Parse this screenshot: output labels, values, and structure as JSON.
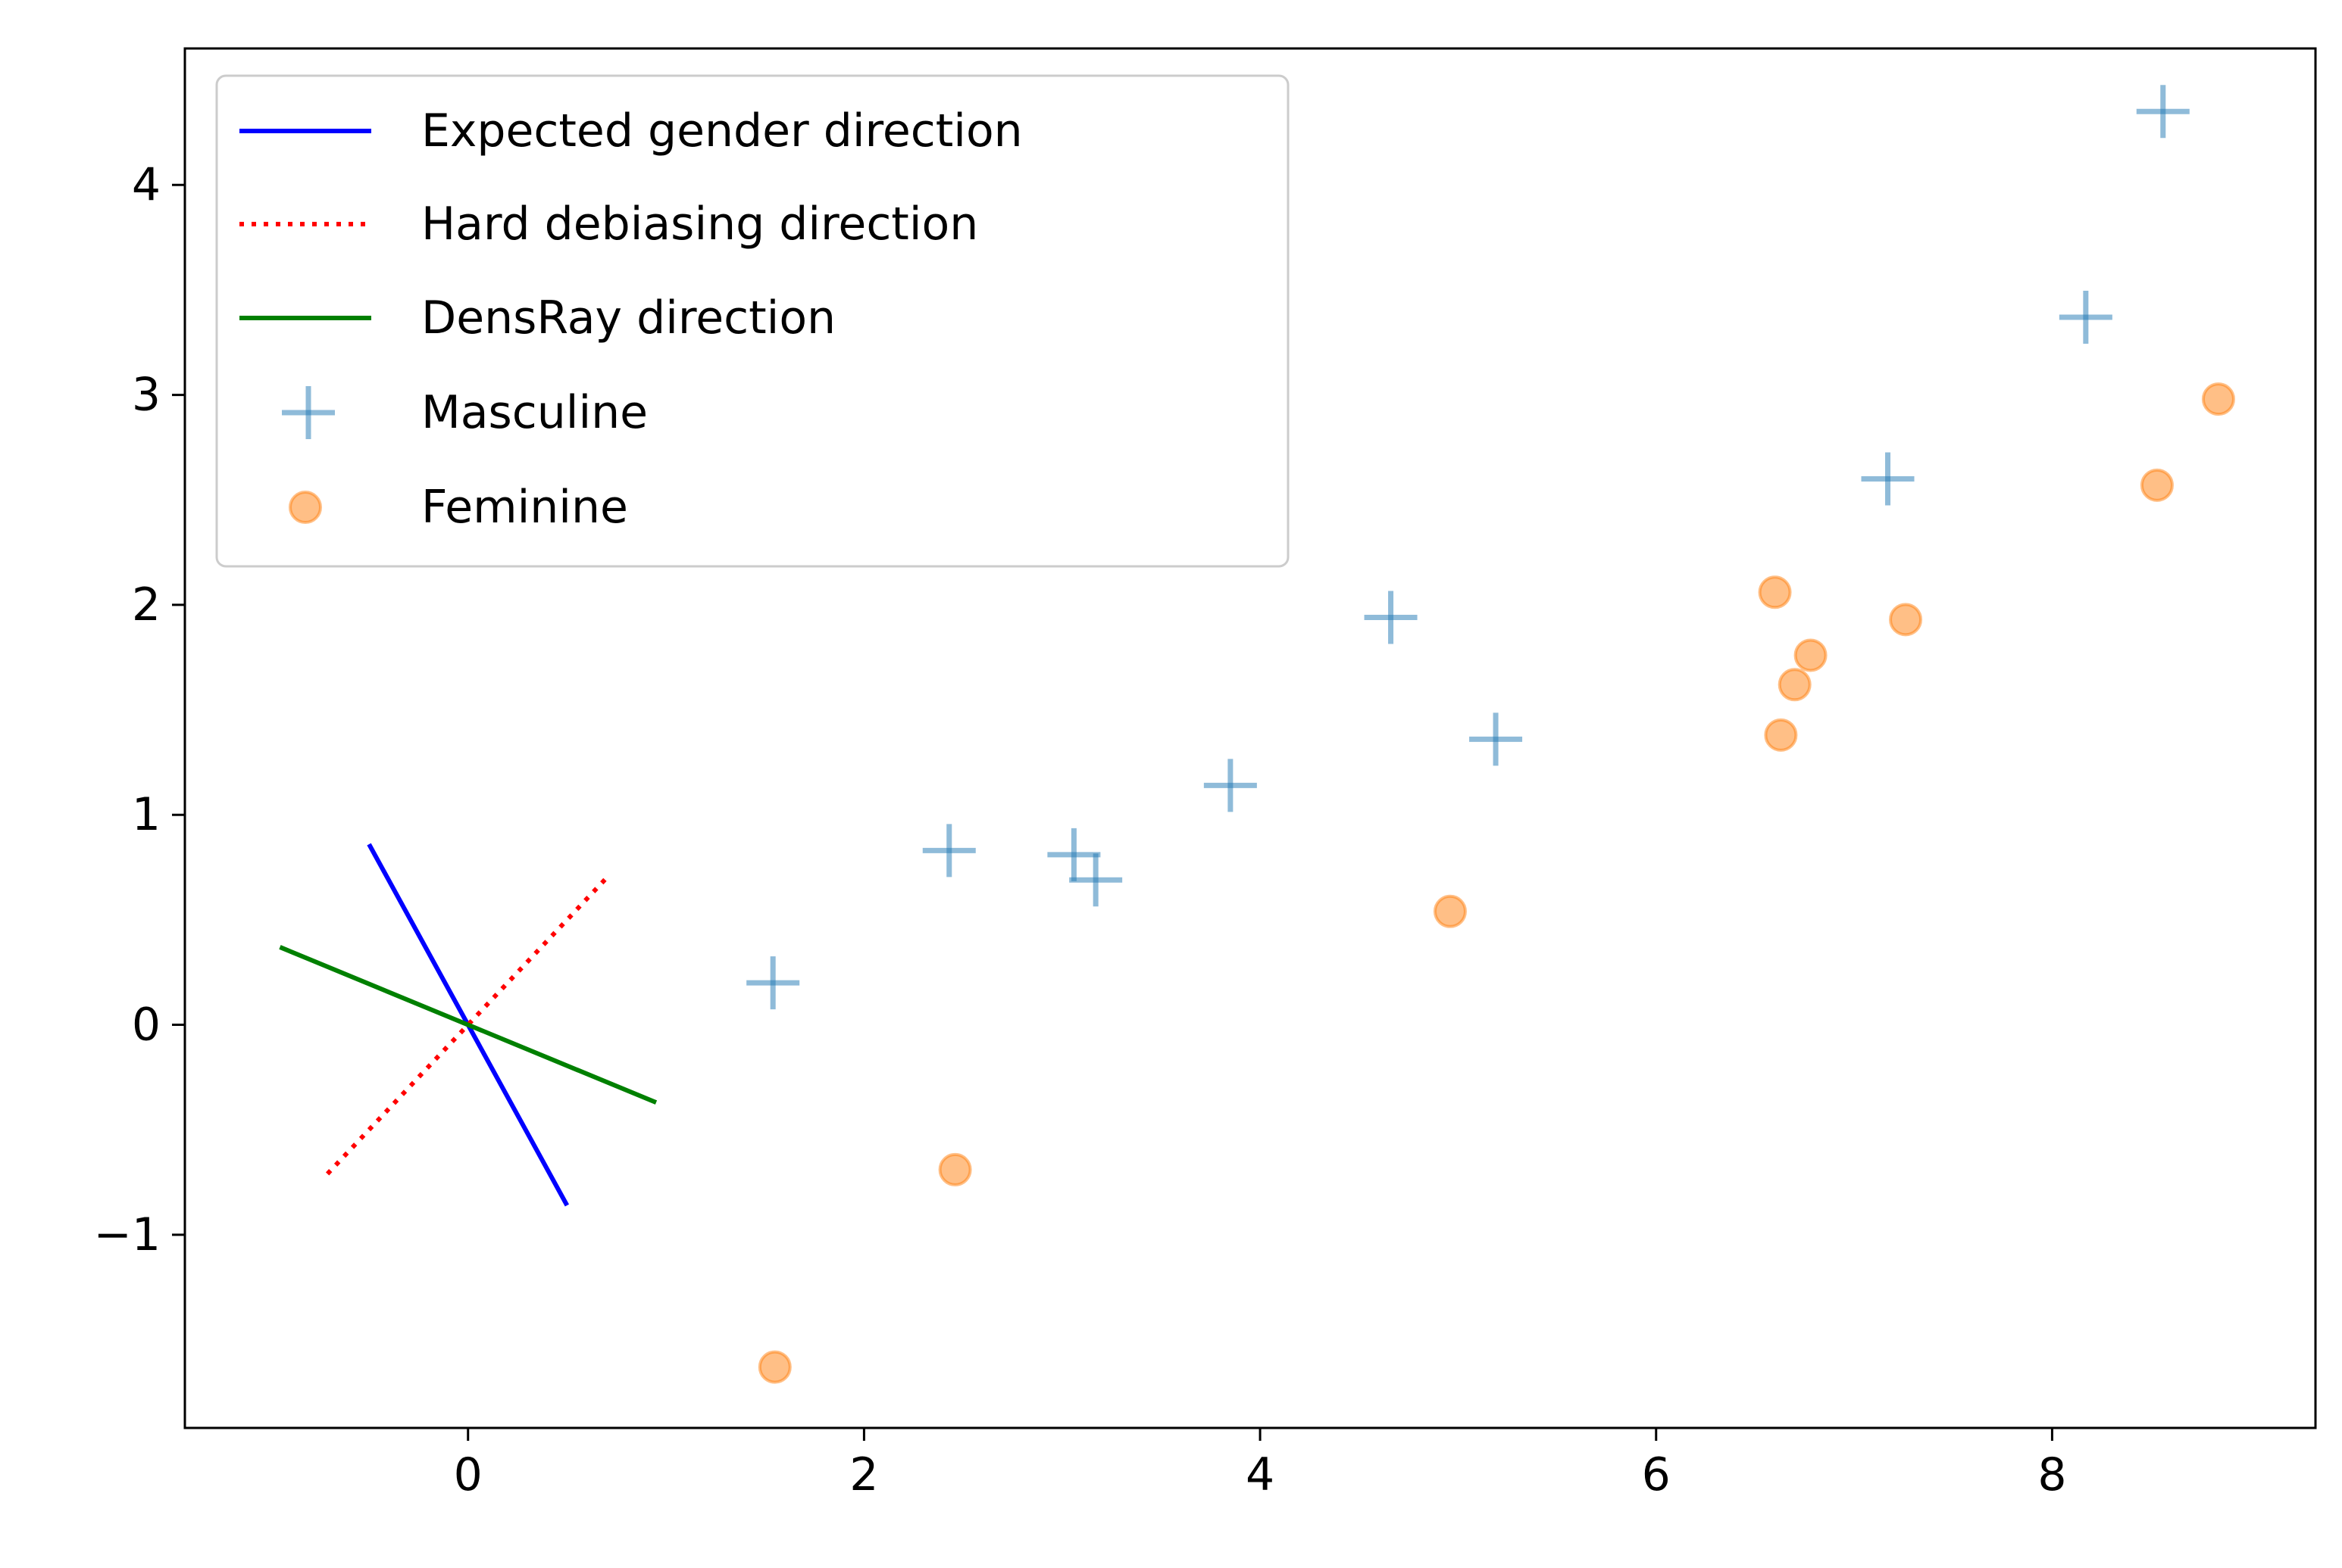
{
  "chart_data": {
    "type": "scatter",
    "title": "",
    "xlabel": "",
    "ylabel": "",
    "xlim": [
      -1.43,
      9.33
    ],
    "ylim": [
      -1.92,
      4.65
    ],
    "xticks": [
      0,
      2,
      4,
      6,
      8
    ],
    "yticks": [
      -1,
      0,
      1,
      2,
      3,
      4
    ],
    "xtick_labels": [
      "0",
      "2",
      "4",
      "6",
      "8"
    ],
    "ytick_labels": [
      "−1",
      "0",
      "1",
      "2",
      "3",
      "4"
    ],
    "grid": false,
    "legend_position": "top-left",
    "lines": [
      {
        "name": "Expected gender direction",
        "color": "#0000ff",
        "style": "solid",
        "x": [
          -0.5,
          0.5
        ],
        "y": [
          0.86,
          -0.86
        ]
      },
      {
        "name": "Hard debiasing direction",
        "color": "#ff0000",
        "style": "dotted",
        "x": [
          -0.71,
          0.71
        ],
        "y": [
          -0.71,
          0.71
        ]
      },
      {
        "name": "DensRay direction",
        "color": "#008000",
        "style": "solid",
        "x": [
          -0.95,
          0.95
        ],
        "y": [
          0.37,
          -0.37
        ]
      }
    ],
    "series": [
      {
        "name": "Masculine",
        "marker": "plus",
        "color": "#1f77b4",
        "points": [
          [
            1.54,
            0.2
          ],
          [
            2.43,
            0.83
          ],
          [
            3.06,
            0.81
          ],
          [
            3.17,
            0.69
          ],
          [
            3.85,
            1.14
          ],
          [
            4.66,
            1.94
          ],
          [
            5.19,
            1.36
          ],
          [
            7.17,
            2.6
          ],
          [
            8.17,
            3.37
          ],
          [
            8.56,
            4.35
          ]
        ]
      },
      {
        "name": "Feminine",
        "marker": "circle",
        "color": "#ff7f0e",
        "points": [
          [
            1.55,
            -1.63
          ],
          [
            2.46,
            -0.69
          ],
          [
            4.96,
            0.54
          ],
          [
            6.6,
            2.06
          ],
          [
            6.63,
            1.38
          ],
          [
            6.7,
            1.62
          ],
          [
            6.78,
            1.76
          ],
          [
            7.26,
            1.93
          ],
          [
            8.53,
            2.57
          ],
          [
            8.84,
            2.98
          ]
        ]
      }
    ]
  }
}
